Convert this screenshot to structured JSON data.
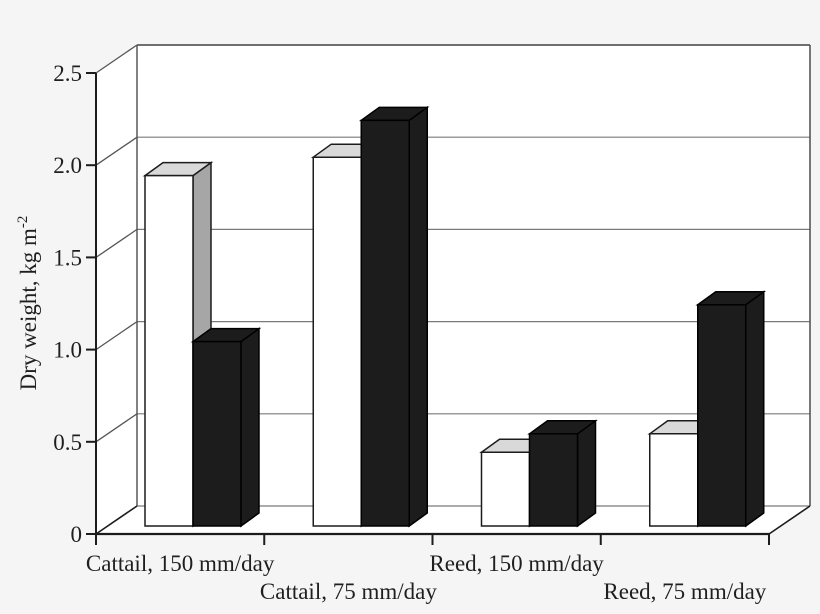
{
  "figure": {
    "background_color": "#f5f5f5",
    "plot_wall_color": "#ffffff"
  },
  "chart_data": {
    "type": "bar",
    "variant": "3d-clustered-column",
    "title": "",
    "xlabel": "",
    "ylabel": "Dry weight, kg m⁻²",
    "ylabel_base": "Dry weight, kg m",
    "ylabel_sup": "-2",
    "ylim": [
      0,
      2.5
    ],
    "grid": true,
    "legend_position": "none",
    "categories": [
      "Cattail, 150 mm/day",
      "Cattail, 75 mm/day",
      "Reed, 150 mm/day",
      "Reed, 75 mm/day"
    ],
    "category_label_rows": [
      1,
      2,
      1,
      2
    ],
    "yticks": [
      {
        "value": 0.0,
        "label": "0"
      },
      {
        "value": 0.5,
        "label": "0.5"
      },
      {
        "value": 1.0,
        "label": "1.0"
      },
      {
        "value": 1.5,
        "label": "1.5"
      },
      {
        "value": 2.0,
        "label": "2.0"
      },
      {
        "value": 2.5,
        "label": "2.5"
      }
    ],
    "series": [
      {
        "name": "white-bars",
        "values": [
          1.9,
          2.0,
          0.4,
          0.5
        ],
        "front_color": "#ffffff",
        "top_color": "#d9d9d9",
        "side_color": "#a6a6a6",
        "outline_color": "#1c1c1c"
      },
      {
        "name": "black-bars",
        "values": [
          1.0,
          2.2,
          0.5,
          1.2
        ],
        "front_color": "#1c1c1c",
        "top_color": "#1c1c1c",
        "side_color": "#1c1c1c",
        "outline_color": "#000000"
      }
    ],
    "colors": {
      "gridline": "#7a7a7a",
      "wall_border": "#4d4d4d",
      "axis": "#1c1c1c",
      "text": "#1f1f1f"
    }
  }
}
